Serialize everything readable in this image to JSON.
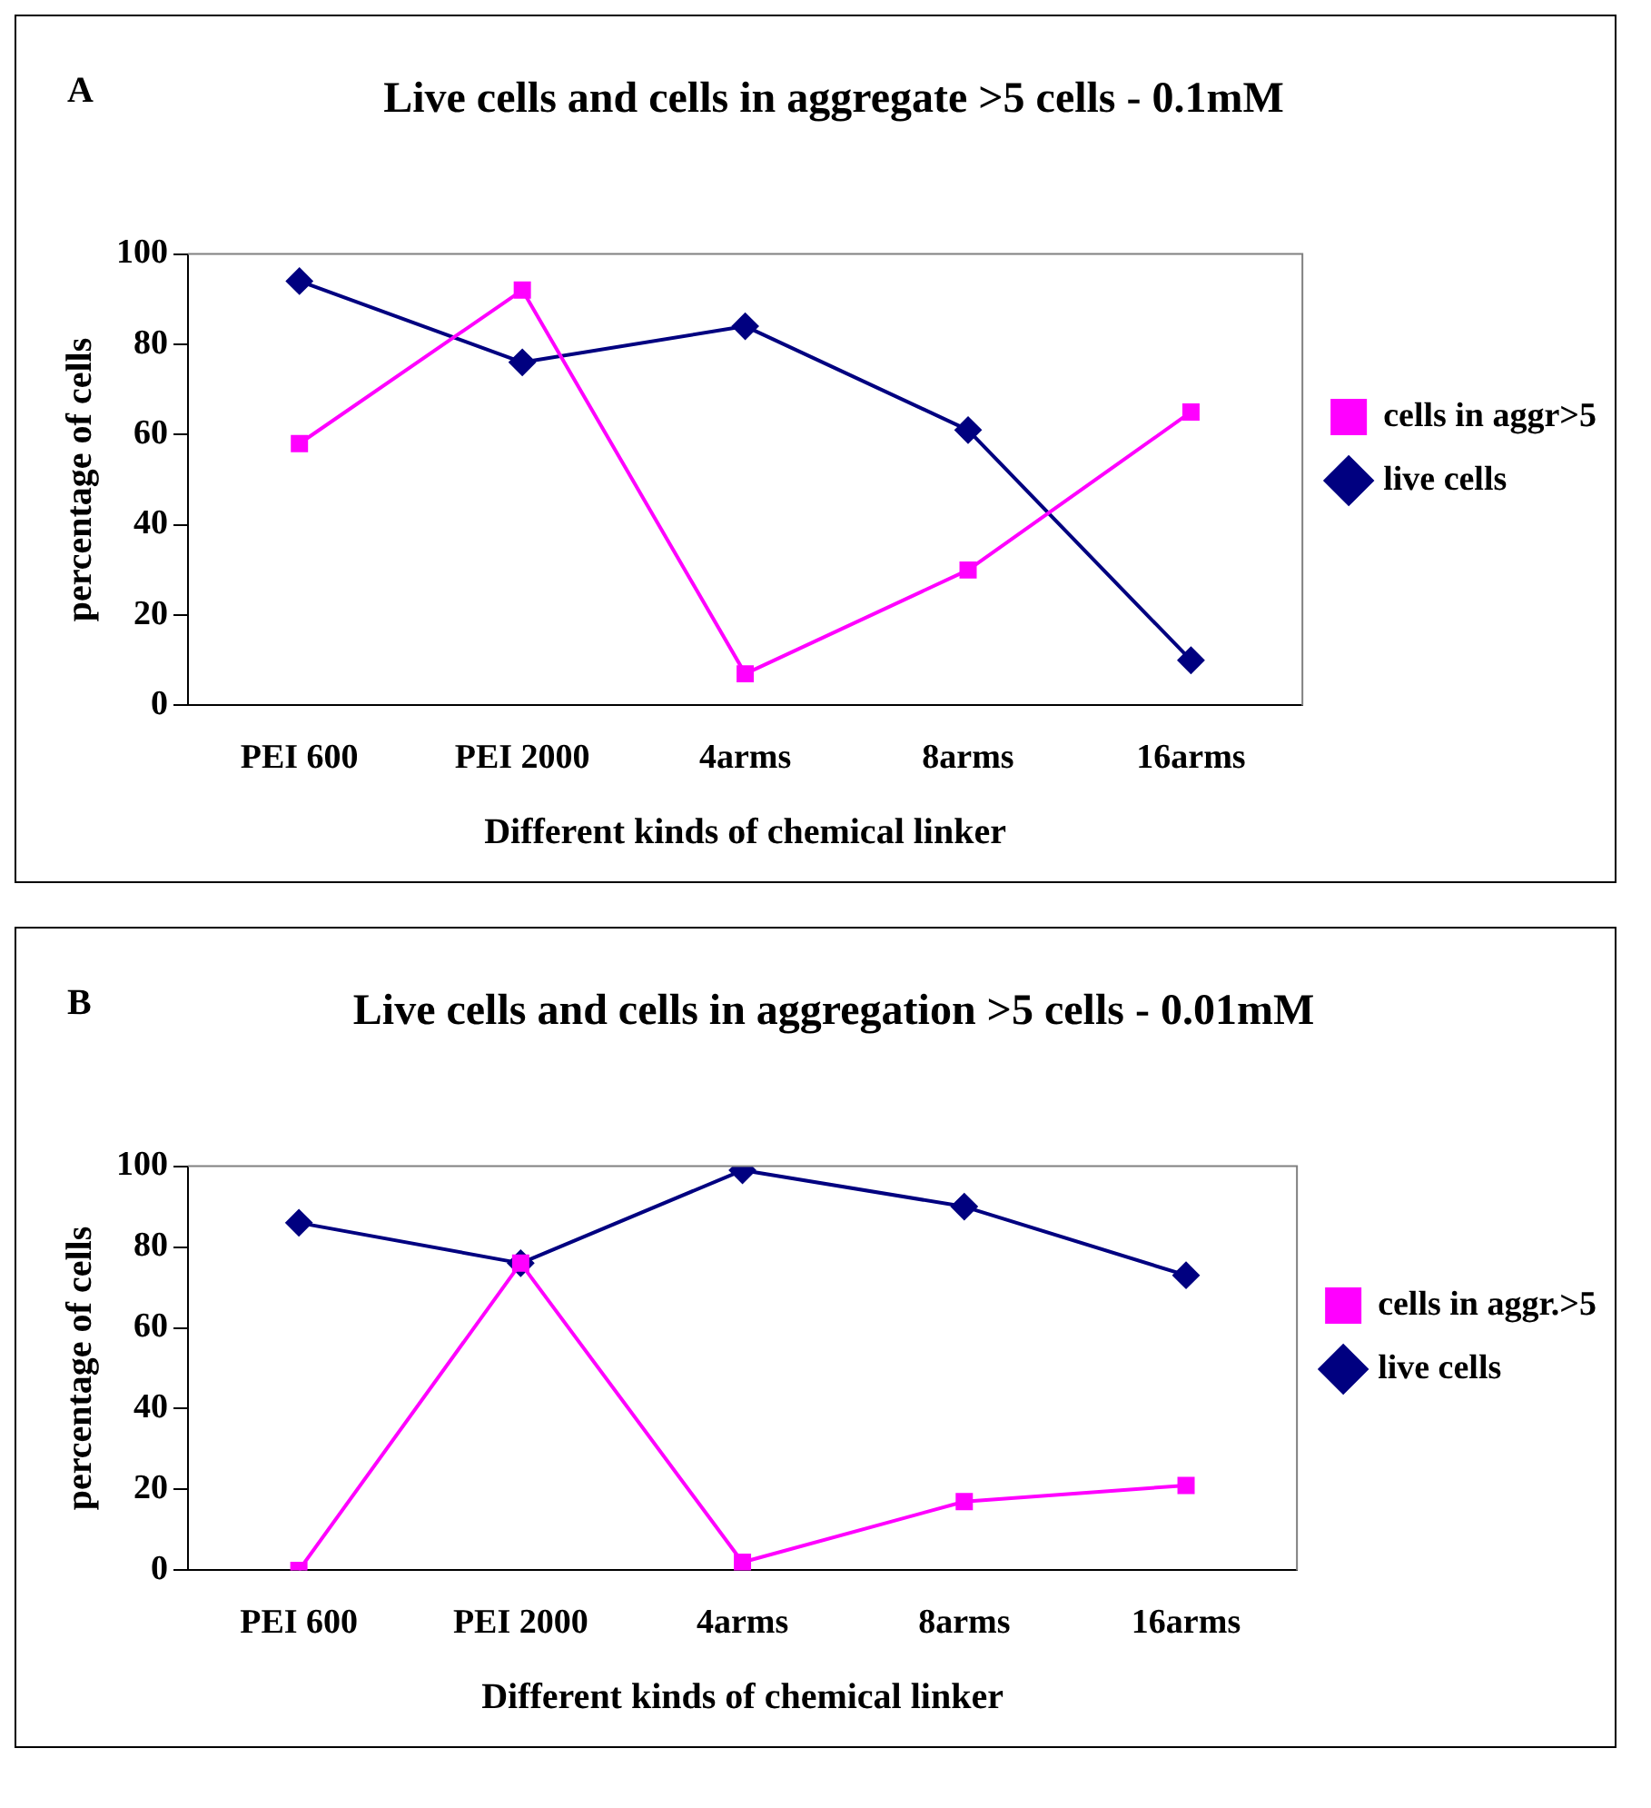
{
  "chart_data": [
    {
      "type": "line",
      "title": "Live cells and cells in aggregate >5 cells - 0.1mM",
      "xlabel": "Different kinds of chemical linker",
      "ylabel": "percentage of cells",
      "annotations": [
        "A"
      ],
      "categories": [
        "PEI 600",
        "PEI 2000",
        "4arms",
        "8arms",
        "16arms"
      ],
      "series": [
        {
          "name": "live cells",
          "color": "#000080",
          "marker": "diamond",
          "values": [
            94,
            76,
            84,
            61,
            10
          ]
        },
        {
          "name": "cells in aggr>5",
          "color": "#ff00ff",
          "marker": "square",
          "values": [
            58,
            92,
            7,
            30,
            65
          ]
        }
      ],
      "ylim": [
        0,
        100
      ],
      "yticks": [
        0,
        20,
        40,
        60,
        80,
        100
      ],
      "grid": false,
      "legend": "right"
    },
    {
      "type": "line",
      "title": "Live cells and cells in aggregation >5 cells - 0.01mM",
      "xlabel": "Different kinds of chemical linker",
      "ylabel": "percentage of cells",
      "annotations": [
        "B"
      ],
      "categories": [
        "PEI 600",
        "PEI 2000",
        "4arms",
        "8arms",
        "16arms"
      ],
      "series": [
        {
          "name": "live cells",
          "color": "#000080",
          "marker": "diamond",
          "values": [
            86,
            76,
            99,
            90,
            73
          ]
        },
        {
          "name": "cells in aggr.>5",
          "color": "#ff00ff",
          "marker": "square",
          "values": [
            0,
            76,
            2,
            17,
            21
          ]
        }
      ],
      "ylim": [
        0,
        100
      ],
      "yticks": [
        0,
        20,
        40,
        60,
        80,
        100
      ],
      "grid": false,
      "legend": "right"
    }
  ]
}
